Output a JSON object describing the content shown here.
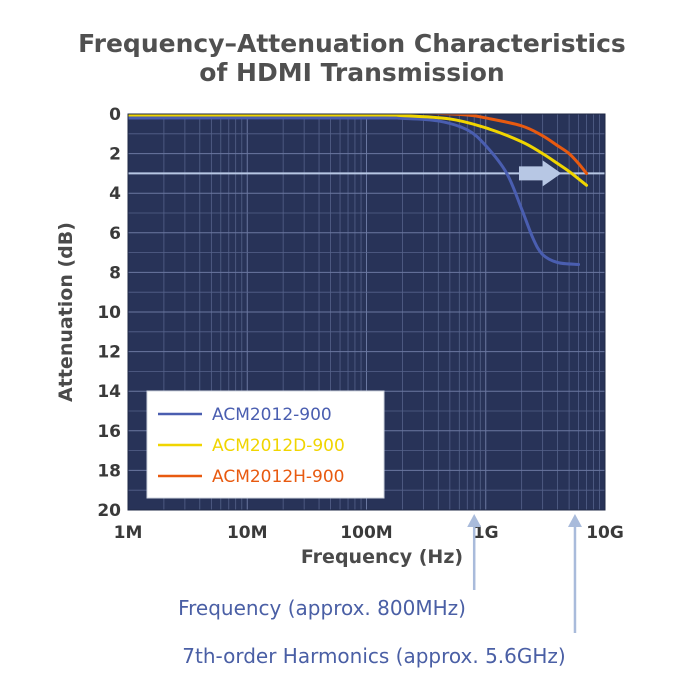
{
  "chart_data": {
    "type": "line",
    "title_lines": [
      "Frequency–Attenuation Characteristics",
      "of HDMI Transmission"
    ],
    "xlabel": "Frequency (Hz)",
    "ylabel": "Attenuation (dB)",
    "x_scale": "log",
    "x_ticks": [
      {
        "value": 1000000,
        "label": "1M"
      },
      {
        "value": 10000000,
        "label": "10M"
      },
      {
        "value": 100000000,
        "label": "100M"
      },
      {
        "value": 1000000000,
        "label": "1G"
      },
      {
        "value": 10000000000,
        "label": "10G"
      }
    ],
    "xlim": [
      1000000,
      10000000000
    ],
    "y_ticks": [
      0,
      2,
      4,
      6,
      8,
      10,
      12,
      14,
      16,
      18,
      20
    ],
    "ylim": [
      0,
      20
    ],
    "y_inverted": true,
    "grid": true,
    "legend_position": "bottom-left",
    "background_color": "#283358",
    "reference_line": {
      "y": 3,
      "color": "#b7c7e4"
    },
    "series": [
      {
        "name": "ACM2012-900",
        "color": "#4a5eb0",
        "x": [
          1000000,
          100000000,
          200000000,
          400000000,
          700000000,
          1000000000,
          1500000000,
          2000000000,
          2500000000,
          3000000000,
          4000000000,
          6000000000
        ],
        "y": [
          0.2,
          0.2,
          0.22,
          0.35,
          0.8,
          1.6,
          3.0,
          4.8,
          6.3,
          7.1,
          7.5,
          7.6
        ]
      },
      {
        "name": "ACM2012D-900",
        "color": "#f0d500",
        "x": [
          1000000,
          100000000,
          200000000,
          500000000,
          1000000000,
          2000000000,
          3000000000,
          4000000000,
          5000000000,
          7000000000
        ],
        "y": [
          0.05,
          0.05,
          0.08,
          0.25,
          0.7,
          1.4,
          2.0,
          2.5,
          2.9,
          3.6
        ]
      },
      {
        "name": "ACM2012H-900",
        "color": "#e85a10",
        "x": [
          1000000,
          100000000,
          300000000,
          700000000,
          1000000000,
          2000000000,
          3000000000,
          4000000000,
          5000000000,
          6000000000,
          7000000000
        ],
        "y": [
          -0.05,
          -0.05,
          -0.05,
          0.05,
          0.2,
          0.6,
          1.1,
          1.6,
          2.0,
          2.5,
          3.0
        ]
      }
    ],
    "annotations": [
      {
        "text": "Frequency (approx. 800MHz)",
        "x": 800000000,
        "color": "#a9bbdb"
      },
      {
        "text": "7th-order Harmonics (approx. 5.6GHz)",
        "x": 5600000000,
        "color": "#a9bbdb"
      }
    ]
  }
}
